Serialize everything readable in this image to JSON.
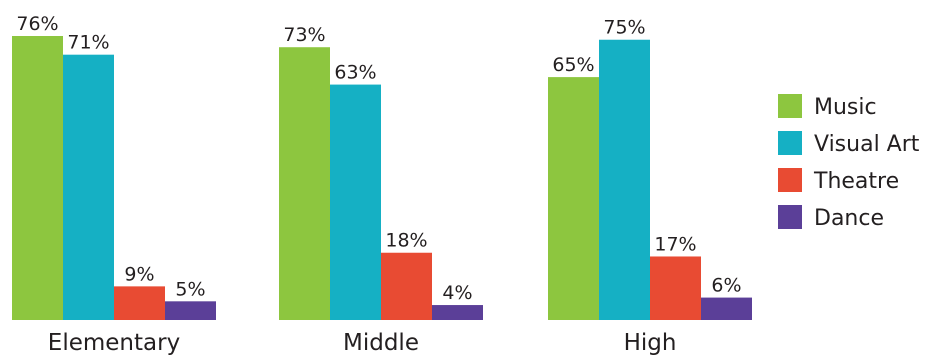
{
  "chart_data": {
    "type": "bar",
    "title": "",
    "xlabel": "",
    "ylabel": "",
    "ylim": [
      0,
      76
    ],
    "grid": false,
    "legend_position": "right",
    "value_suffix": "%",
    "categories": [
      "Elementary",
      "Middle",
      "High"
    ],
    "series": [
      {
        "name": "Music",
        "color": "#8dc63f",
        "values": [
          76,
          73,
          65
        ]
      },
      {
        "name": "Visual Art",
        "color": "#15b0c4",
        "values": [
          71,
          63,
          75
        ]
      },
      {
        "name": "Theatre",
        "color": "#e84b33",
        "values": [
          9,
          18,
          17
        ]
      },
      {
        "name": "Dance",
        "color": "#5b3f98",
        "values": [
          5,
          4,
          6
        ]
      }
    ]
  }
}
